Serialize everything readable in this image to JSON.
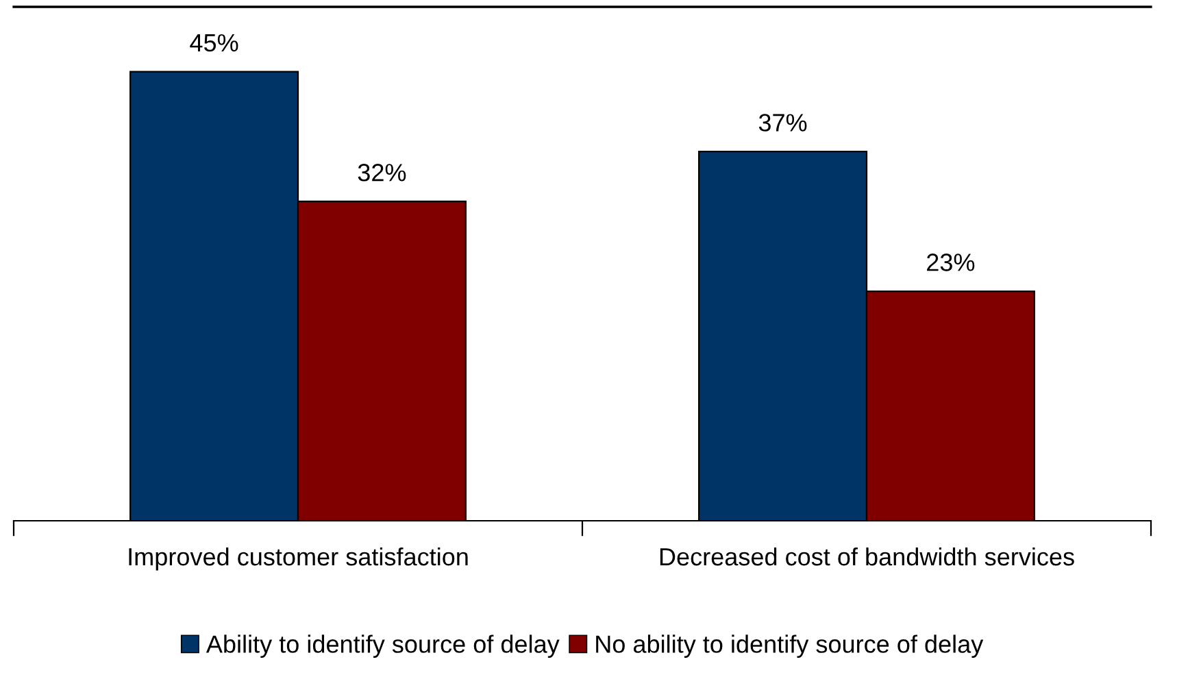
{
  "chart_data": {
    "type": "bar",
    "categories": [
      "Improved customer satisfaction",
      "Decreased cost of bandwidth services"
    ],
    "series": [
      {
        "name": "Ability to identify source of delay",
        "color": "#003366",
        "values": [
          45,
          37
        ],
        "value_labels": [
          "45%",
          "37%"
        ]
      },
      {
        "name": "No ability to identify source of delay",
        "color": "#800000",
        "values": [
          32,
          23
        ],
        "value_labels": [
          "32%",
          "23%"
        ]
      }
    ],
    "ylim": [
      0,
      51.5
    ],
    "tick_labels": "x",
    "legend": "bottom",
    "grid": false
  }
}
